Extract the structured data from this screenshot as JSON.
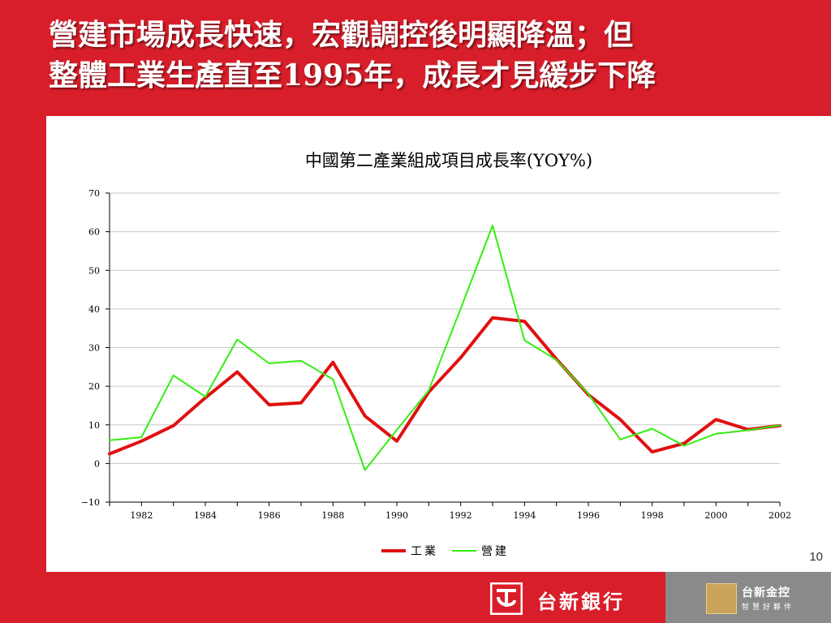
{
  "slide": {
    "title_line1": "營建市場成長快速，宏觀調控後明顯降溫；但",
    "title_line2": "整體工業生產直至1995年，成長才見緩步下降",
    "page_number": "10"
  },
  "footer": {
    "bank_name": "台新銀行",
    "holding_name": "台新金控",
    "holding_slogan": "智慧好夥伴"
  },
  "colors": {
    "background": "#d81e2a",
    "industry": "#e01010",
    "construction": "#33ee11"
  },
  "chart_data": {
    "type": "line",
    "title": "中國第二產業組成項目成長率(YOY%)",
    "xlabel": "",
    "ylabel": "",
    "x": [
      1981,
      1982,
      1983,
      1984,
      1985,
      1986,
      1987,
      1988,
      1989,
      1990,
      1991,
      1992,
      1993,
      1994,
      1995,
      1996,
      1997,
      1998,
      1999,
      2000,
      2001,
      2002
    ],
    "x_ticks": [
      "1982",
      "1984",
      "1986",
      "1988",
      "1990",
      "1992",
      "1994",
      "1996",
      "1998",
      "2000",
      "2002"
    ],
    "y_ticks": [
      "70",
      "60",
      "50",
      "40",
      "30",
      "20",
      "10",
      "0",
      "−10"
    ],
    "ylim": [
      -10,
      70
    ],
    "grid": true,
    "legend_position": "bottom",
    "series": [
      {
        "name": "工業",
        "color": "#e01010",
        "values": [
          2.5,
          5.8,
          9.8,
          17.0,
          23.7,
          15.2,
          15.7,
          26.2,
          12.3,
          5.8,
          18.5,
          27.4,
          37.7,
          36.8,
          27.0,
          17.8,
          11.4,
          3.0,
          5.2,
          11.4,
          8.8,
          9.8
        ]
      },
      {
        "name": "營建",
        "color": "#33ee11",
        "values": [
          6.0,
          6.8,
          22.8,
          17.3,
          32.1,
          25.9,
          26.6,
          21.8,
          -1.7,
          8.7,
          18.9,
          40.1,
          61.6,
          31.9,
          26.8,
          18.0,
          6.2,
          9.0,
          4.6,
          7.7,
          8.6,
          9.9
        ]
      }
    ]
  }
}
